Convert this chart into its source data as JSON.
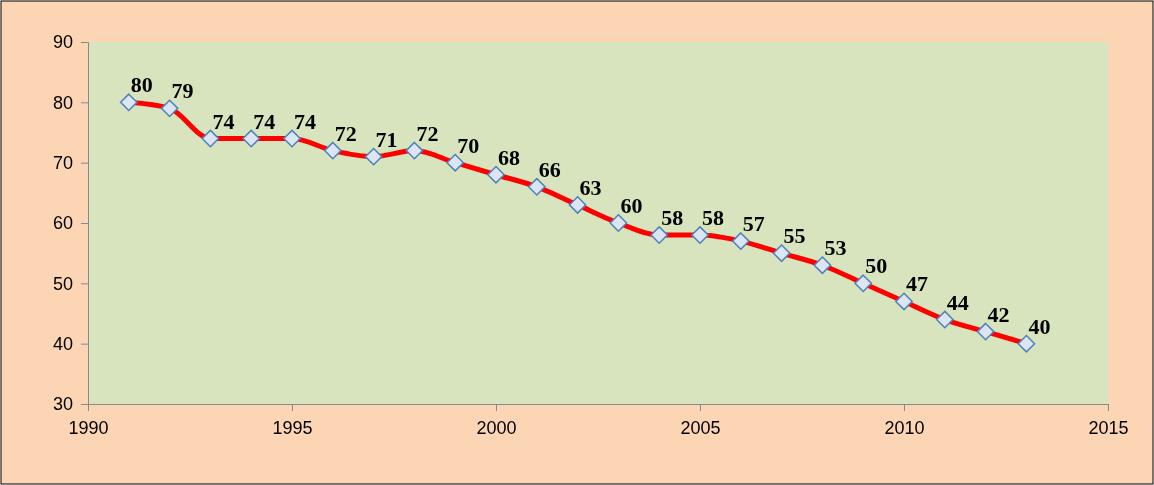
{
  "chart_data": {
    "type": "line",
    "x": [
      1991,
      1992,
      1993,
      1994,
      1995,
      1996,
      1997,
      1998,
      1999,
      2000,
      2001,
      2002,
      2003,
      2004,
      2005,
      2006,
      2007,
      2008,
      2009,
      2010,
      2011,
      2012,
      2013
    ],
    "series": [
      {
        "color": "#ff0000",
        "values": [
          80,
          79,
          74,
          74,
          74,
          72,
          71,
          72,
          70,
          68,
          66,
          63,
          60,
          58,
          58,
          57,
          55,
          53,
          50,
          47,
          44,
          42,
          40
        ]
      }
    ],
    "xlim": [
      1990,
      2015
    ],
    "xticks": [
      1990,
      1995,
      2000,
      2005,
      2010,
      2015
    ],
    "ylim": [
      30,
      90
    ],
    "yticks": [
      30,
      40,
      50,
      60,
      70,
      80,
      90
    ],
    "marker": "diamond",
    "line_style": "solid",
    "data_labels": true,
    "grid": false
  }
}
